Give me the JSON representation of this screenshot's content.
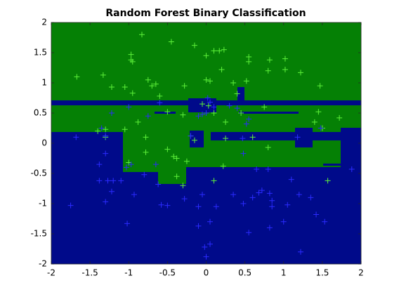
{
  "chart_data": {
    "type": "scatter",
    "title": "Random Forest Binary Classification",
    "xlim": [
      -2,
      2
    ],
    "ylim": [
      -2,
      2
    ],
    "xticks": [
      -2,
      -1.5,
      -1,
      -0.5,
      0,
      0.5,
      1,
      1.5,
      2
    ],
    "yticks": [
      -2,
      -1.5,
      -1,
      -0.5,
      0,
      0.5,
      1,
      1.5,
      2
    ],
    "series": [
      {
        "color": "#5ef03a",
        "x": [
          -0.83,
          -0.97,
          -0.97,
          -0.95,
          -0.45,
          -0.15,
          0.1,
          0.17,
          0.23,
          0.0,
          0.55,
          0.55,
          0.82,
          1.02,
          0.8,
          1.02,
          1.22,
          0.2,
          -1.67,
          -1.33,
          -1.22,
          -0.75,
          -0.65,
          -0.7,
          -1.05,
          -0.95,
          -0.28,
          0.0,
          0.05,
          0.35,
          0.52,
          1.47,
          -0.6,
          0.4,
          -0.05,
          0.03,
          0.1,
          -0.5,
          -0.3,
          0.25,
          0.45,
          0.75,
          1.45,
          1.72,
          1.4,
          -0.88,
          -1.4,
          -1.3,
          -1.05,
          -1.3,
          -0.78,
          -0.2,
          -0.15,
          0.25,
          0.6,
          0.8,
          -0.78,
          -1.0,
          -0.42,
          -0.38,
          -0.25,
          0.22,
          -0.38,
          -0.3,
          0.1,
          1.57,
          -0.5,
          1.5
        ],
        "y": [
          1.8,
          1.47,
          1.38,
          1.35,
          1.68,
          1.62,
          1.53,
          1.53,
          1.55,
          1.45,
          1.43,
          1.35,
          1.38,
          1.4,
          1.2,
          1.22,
          1.17,
          1.22,
          1.1,
          1.13,
          0.93,
          1.05,
          0.98,
          0.95,
          0.93,
          0.83,
          0.95,
          1.05,
          1.03,
          1.0,
          1.03,
          0.95,
          0.78,
          0.82,
          0.65,
          0.62,
          0.5,
          0.52,
          0.47,
          0.35,
          0.5,
          0.6,
          0.52,
          0.42,
          0.35,
          0.35,
          0.2,
          0.23,
          0.23,
          0.1,
          0.1,
          0.12,
          0.05,
          0.08,
          0.1,
          -0.07,
          -0.15,
          -0.32,
          -0.22,
          -0.25,
          -0.3,
          -0.38,
          -0.55,
          -0.7,
          -0.62,
          -0.62,
          -0.1,
          0.25
        ]
      },
      {
        "color": "#2b2bff",
        "x": [
          -1.75,
          -1.68,
          -1.3,
          -1.3,
          -1.38,
          -1.38,
          -1.27,
          -1.2,
          -1.22,
          -1.3,
          -1.1,
          -1.03,
          -0.97,
          -0.93,
          -1.02,
          -0.8,
          -0.65,
          -0.62,
          -0.58,
          -0.5,
          -0.28,
          -0.1,
          -0.1,
          0.05,
          0.05,
          -0.02,
          0.0,
          0.13,
          -0.05,
          0.35,
          0.48,
          0.55,
          0.6,
          0.68,
          0.72,
          0.65,
          0.8,
          0.82,
          0.85,
          0.85,
          0.82,
          1.0,
          1.05,
          1.1,
          1.2,
          1.35,
          1.42,
          1.53,
          1.22,
          1.88,
          0.48,
          0.02,
          0.05,
          -0.1,
          -0.05,
          -0.2,
          -0.75,
          -0.6,
          -1.0,
          -1.22,
          -1.35,
          0.0,
          0.1,
          0.3,
          0.4,
          0.55,
          0.52,
          0.47,
          1.48,
          1.18
        ],
        "y": [
          -1.03,
          0.1,
          0.12,
          -0.17,
          -0.35,
          -0.62,
          -0.62,
          -0.62,
          -0.8,
          -0.97,
          -0.62,
          -0.4,
          -0.35,
          -0.85,
          -1.33,
          -0.52,
          -0.35,
          -0.68,
          -1.02,
          -1.03,
          -0.92,
          -1.05,
          -1.37,
          -1.3,
          -1.67,
          -1.72,
          -1.88,
          -1.05,
          -0.85,
          -0.85,
          -1.0,
          -1.48,
          -0.9,
          -0.82,
          -0.78,
          -0.43,
          -0.43,
          -0.83,
          -0.95,
          -1.05,
          -1.4,
          -1.3,
          -1.02,
          -0.6,
          -0.85,
          -0.9,
          -1.18,
          -1.3,
          -1.8,
          -0.43,
          -0.17,
          0.75,
          0.68,
          0.45,
          0.48,
          0.12,
          0.45,
          0.67,
          0.6,
          0.5,
          0.25,
          0.5,
          0.6,
          0.62,
          0.58,
          0.4,
          0.32,
          0.08,
          0.25,
          0.1
        ]
      }
    ]
  }
}
